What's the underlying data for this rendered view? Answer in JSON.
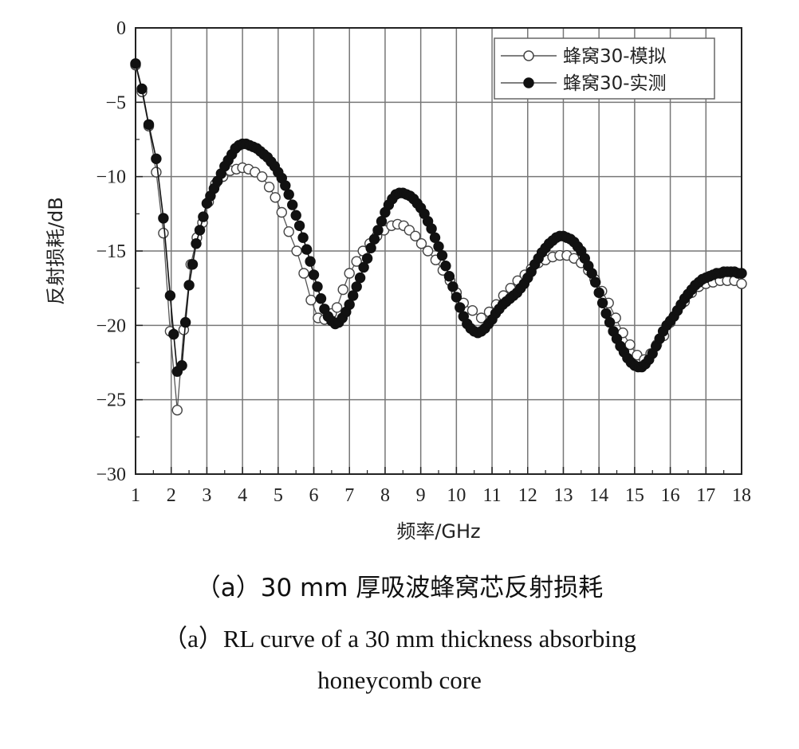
{
  "chart_data": {
    "type": "line",
    "xlabel": "频率/GHz",
    "ylabel": "反射损耗/dB",
    "xlim": [
      1,
      18
    ],
    "ylim": [
      -30,
      0
    ],
    "xticks": [
      1,
      2,
      3,
      4,
      5,
      6,
      7,
      8,
      9,
      10,
      11,
      12,
      13,
      14,
      15,
      16,
      17,
      18
    ],
    "yticks": [
      0,
      -5,
      -10,
      -15,
      -20,
      -25,
      -30
    ],
    "ytick_labels": [
      "0",
      "−5",
      "−10",
      "−15",
      "−20",
      "−25",
      "−30"
    ],
    "grid": true,
    "legend_position": "top-right",
    "series": [
      {
        "name": "蜂窝30-模拟",
        "marker": "open-circle",
        "points": [
          [
            1,
            -2.5
          ],
          [
            1.18,
            -4.3
          ],
          [
            1.37,
            -6.6
          ],
          [
            1.58,
            -9.7
          ],
          [
            1.78,
            -13.8
          ],
          [
            1.97,
            -20.4
          ],
          [
            2.17,
            -25.7
          ],
          [
            2.35,
            -20.3
          ],
          [
            2.55,
            -15.9
          ],
          [
            2.72,
            -14.1
          ],
          [
            2.88,
            -13.1
          ],
          [
            3.05,
            -11.7
          ],
          [
            3.24,
            -10.5
          ],
          [
            3.45,
            -10.0
          ],
          [
            3.65,
            -9.6
          ],
          [
            3.83,
            -9.5
          ],
          [
            4.0,
            -9.4
          ],
          [
            4.17,
            -9.5
          ],
          [
            4.35,
            -9.7
          ],
          [
            4.55,
            -10.0
          ],
          [
            4.75,
            -10.7
          ],
          [
            4.92,
            -11.4
          ],
          [
            5.1,
            -12.4
          ],
          [
            5.3,
            -13.7
          ],
          [
            5.52,
            -15.0
          ],
          [
            5.72,
            -16.5
          ],
          [
            5.92,
            -18.3
          ],
          [
            6.12,
            -19.5
          ],
          [
            6.3,
            -19.6
          ],
          [
            6.5,
            -19.2
          ],
          [
            6.65,
            -18.8
          ],
          [
            6.82,
            -17.6
          ],
          [
            7.0,
            -16.5
          ],
          [
            7.2,
            -15.7
          ],
          [
            7.38,
            -15.0
          ],
          [
            7.57,
            -14.5
          ],
          [
            7.77,
            -14.0
          ],
          [
            7.97,
            -13.6
          ],
          [
            8.18,
            -13.3
          ],
          [
            8.35,
            -13.2
          ],
          [
            8.52,
            -13.3
          ],
          [
            8.68,
            -13.6
          ],
          [
            8.85,
            -14.0
          ],
          [
            9.02,
            -14.5
          ],
          [
            9.2,
            -15.0
          ],
          [
            9.42,
            -15.6
          ],
          [
            9.62,
            -16.3
          ],
          [
            9.82,
            -17.0
          ],
          [
            10.0,
            -17.8
          ],
          [
            10.2,
            -18.5
          ],
          [
            10.45,
            -19.0
          ],
          [
            10.7,
            -19.5
          ],
          [
            10.92,
            -19.1
          ],
          [
            11.12,
            -18.6
          ],
          [
            11.32,
            -18.0
          ],
          [
            11.52,
            -17.5
          ],
          [
            11.72,
            -17.0
          ],
          [
            11.92,
            -16.6
          ],
          [
            12.1,
            -16.2
          ],
          [
            12.3,
            -15.8
          ],
          [
            12.5,
            -15.6
          ],
          [
            12.7,
            -15.4
          ],
          [
            12.9,
            -15.3
          ],
          [
            13.1,
            -15.3
          ],
          [
            13.3,
            -15.5
          ],
          [
            13.5,
            -15.8
          ],
          [
            13.7,
            -16.3
          ],
          [
            13.88,
            -16.9
          ],
          [
            14.08,
            -17.7
          ],
          [
            14.27,
            -18.5
          ],
          [
            14.47,
            -19.5
          ],
          [
            14.67,
            -20.5
          ],
          [
            14.87,
            -21.3
          ],
          [
            15.07,
            -22.0
          ],
          [
            15.27,
            -22.3
          ],
          [
            15.45,
            -21.9
          ],
          [
            15.62,
            -21.3
          ],
          [
            15.82,
            -20.7
          ],
          [
            16.0,
            -19.8
          ],
          [
            16.2,
            -19.0
          ],
          [
            16.4,
            -18.4
          ],
          [
            16.6,
            -17.8
          ],
          [
            16.8,
            -17.4
          ],
          [
            17.0,
            -17.2
          ],
          [
            17.2,
            -17.1
          ],
          [
            17.4,
            -17.0
          ],
          [
            17.6,
            -17.0
          ],
          [
            17.8,
            -17.0
          ],
          [
            18.0,
            -17.2
          ]
        ]
      },
      {
        "name": "蜂窝30-实测",
        "marker": "filled-circle",
        "points": [
          [
            1,
            -2.4
          ],
          [
            1.18,
            -4.1
          ],
          [
            1.37,
            -6.5
          ],
          [
            1.58,
            -8.8
          ],
          [
            1.78,
            -12.8
          ],
          [
            1.97,
            -18.0
          ],
          [
            2.07,
            -20.6
          ],
          [
            2.17,
            -23.1
          ],
          [
            2.3,
            -22.7
          ],
          [
            2.4,
            -19.8
          ],
          [
            2.5,
            -17.3
          ],
          [
            2.6,
            -15.9
          ],
          [
            2.7,
            -14.5
          ],
          [
            2.8,
            -13.6
          ],
          [
            2.9,
            -12.7
          ],
          [
            3.0,
            -11.8
          ],
          [
            3.1,
            -11.3
          ],
          [
            3.2,
            -10.8
          ],
          [
            3.3,
            -10.3
          ],
          [
            3.4,
            -9.8
          ],
          [
            3.5,
            -9.3
          ],
          [
            3.6,
            -8.9
          ],
          [
            3.7,
            -8.5
          ],
          [
            3.8,
            -8.1
          ],
          [
            3.9,
            -7.9
          ],
          [
            4.0,
            -7.8
          ],
          [
            4.1,
            -7.8
          ],
          [
            4.2,
            -7.9
          ],
          [
            4.3,
            -8.0
          ],
          [
            4.4,
            -8.1
          ],
          [
            4.5,
            -8.3
          ],
          [
            4.6,
            -8.5
          ],
          [
            4.7,
            -8.7
          ],
          [
            4.8,
            -9.0
          ],
          [
            4.9,
            -9.3
          ],
          [
            5.0,
            -9.7
          ],
          [
            5.1,
            -10.1
          ],
          [
            5.2,
            -10.6
          ],
          [
            5.3,
            -11.2
          ],
          [
            5.4,
            -11.9
          ],
          [
            5.5,
            -12.6
          ],
          [
            5.6,
            -13.3
          ],
          [
            5.7,
            -14.1
          ],
          [
            5.8,
            -14.9
          ],
          [
            5.9,
            -15.7
          ],
          [
            6.0,
            -16.6
          ],
          [
            6.1,
            -17.4
          ],
          [
            6.2,
            -18.2
          ],
          [
            6.3,
            -18.9
          ],
          [
            6.4,
            -19.4
          ],
          [
            6.5,
            -19.7
          ],
          [
            6.6,
            -19.9
          ],
          [
            6.7,
            -19.8
          ],
          [
            6.8,
            -19.5
          ],
          [
            6.9,
            -19.1
          ],
          [
            7.0,
            -18.6
          ],
          [
            7.1,
            -18.0
          ],
          [
            7.2,
            -17.4
          ],
          [
            7.3,
            -16.8
          ],
          [
            7.4,
            -16.1
          ],
          [
            7.5,
            -15.5
          ],
          [
            7.6,
            -14.8
          ],
          [
            7.7,
            -14.2
          ],
          [
            7.8,
            -13.6
          ],
          [
            7.9,
            -13.0
          ],
          [
            8.0,
            -12.4
          ],
          [
            8.1,
            -11.9
          ],
          [
            8.2,
            -11.5
          ],
          [
            8.3,
            -11.2
          ],
          [
            8.4,
            -11.1
          ],
          [
            8.5,
            -11.1
          ],
          [
            8.6,
            -11.2
          ],
          [
            8.7,
            -11.3
          ],
          [
            8.8,
            -11.5
          ],
          [
            8.9,
            -11.8
          ],
          [
            9.0,
            -12.1
          ],
          [
            9.1,
            -12.5
          ],
          [
            9.2,
            -13.0
          ],
          [
            9.3,
            -13.5
          ],
          [
            9.4,
            -14.1
          ],
          [
            9.5,
            -14.7
          ],
          [
            9.6,
            -15.3
          ],
          [
            9.7,
            -16.0
          ],
          [
            9.8,
            -16.7
          ],
          [
            9.9,
            -17.4
          ],
          [
            10.0,
            -18.1
          ],
          [
            10.1,
            -18.8
          ],
          [
            10.2,
            -19.4
          ],
          [
            10.3,
            -19.9
          ],
          [
            10.4,
            -20.2
          ],
          [
            10.5,
            -20.4
          ],
          [
            10.6,
            -20.5
          ],
          [
            10.7,
            -20.4
          ],
          [
            10.8,
            -20.2
          ],
          [
            10.9,
            -19.9
          ],
          [
            11.0,
            -19.6
          ],
          [
            11.1,
            -19.2
          ],
          [
            11.2,
            -18.9
          ],
          [
            11.3,
            -18.6
          ],
          [
            11.4,
            -18.4
          ],
          [
            11.5,
            -18.2
          ],
          [
            11.6,
            -18.0
          ],
          [
            11.7,
            -17.8
          ],
          [
            11.8,
            -17.5
          ],
          [
            11.9,
            -17.2
          ],
          [
            12.0,
            -16.8
          ],
          [
            12.1,
            -16.4
          ],
          [
            12.2,
            -15.9
          ],
          [
            12.3,
            -15.5
          ],
          [
            12.4,
            -15.1
          ],
          [
            12.5,
            -14.8
          ],
          [
            12.6,
            -14.5
          ],
          [
            12.7,
            -14.3
          ],
          [
            12.8,
            -14.1
          ],
          [
            12.9,
            -14.0
          ],
          [
            13.0,
            -14.0
          ],
          [
            13.1,
            -14.1
          ],
          [
            13.2,
            -14.2
          ],
          [
            13.3,
            -14.4
          ],
          [
            13.4,
            -14.7
          ],
          [
            13.5,
            -15.0
          ],
          [
            13.6,
            -15.5
          ],
          [
            13.7,
            -16.0
          ],
          [
            13.8,
            -16.5
          ],
          [
            13.9,
            -17.1
          ],
          [
            14.0,
            -17.8
          ],
          [
            14.1,
            -18.5
          ],
          [
            14.2,
            -19.2
          ],
          [
            14.3,
            -19.8
          ],
          [
            14.4,
            -20.4
          ],
          [
            14.5,
            -20.9
          ],
          [
            14.6,
            -21.4
          ],
          [
            14.7,
            -21.8
          ],
          [
            14.8,
            -22.2
          ],
          [
            14.9,
            -22.5
          ],
          [
            15.0,
            -22.7
          ],
          [
            15.1,
            -22.8
          ],
          [
            15.2,
            -22.8
          ],
          [
            15.3,
            -22.6
          ],
          [
            15.4,
            -22.3
          ],
          [
            15.5,
            -21.9
          ],
          [
            15.6,
            -21.4
          ],
          [
            15.7,
            -20.9
          ],
          [
            15.8,
            -20.4
          ],
          [
            15.9,
            -20.0
          ],
          [
            16.0,
            -19.7
          ],
          [
            16.1,
            -19.4
          ],
          [
            16.2,
            -19.0
          ],
          [
            16.3,
            -18.6
          ],
          [
            16.4,
            -18.2
          ],
          [
            16.5,
            -17.9
          ],
          [
            16.6,
            -17.6
          ],
          [
            16.7,
            -17.3
          ],
          [
            16.8,
            -17.1
          ],
          [
            16.9,
            -16.9
          ],
          [
            17.0,
            -16.8
          ],
          [
            17.1,
            -16.7
          ],
          [
            17.2,
            -16.6
          ],
          [
            17.3,
            -16.5
          ],
          [
            17.4,
            -16.5
          ],
          [
            17.5,
            -16.4
          ],
          [
            17.6,
            -16.4
          ],
          [
            17.7,
            -16.4
          ],
          [
            17.8,
            -16.4
          ],
          [
            17.9,
            -16.5
          ],
          [
            18.0,
            -16.5
          ]
        ]
      }
    ]
  },
  "caption": {
    "line1": "（a）30 mm 厚吸波蜂窝芯反射损耗",
    "line2": "（a）RL curve of a 30 mm thickness absorbing",
    "line3": "honeycomb core"
  }
}
